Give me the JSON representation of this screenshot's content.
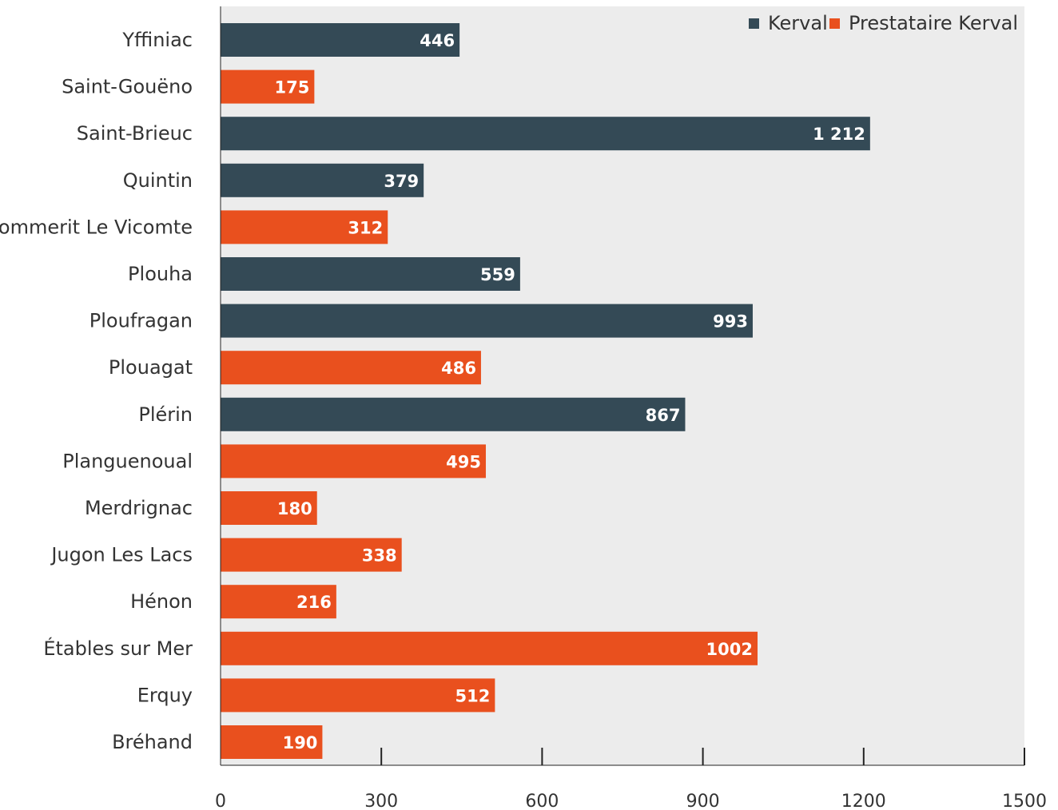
{
  "chart_data": {
    "type": "bar",
    "orientation": "horizontal",
    "categories": [
      "Yffiniac",
      "Saint-Gouëno",
      "Saint-Brieuc",
      "Quintin",
      "Pommerit Le Vicomte",
      "Plouha",
      "Ploufragan",
      "Plouagat",
      "Plérin",
      "Planguenoual",
      "Merdrignac",
      "Jugon Les Lacs",
      "Hénon",
      "Étables sur Mer",
      "Erquy",
      "Bréhand"
    ],
    "values": [
      446,
      175,
      1212,
      379,
      312,
      559,
      993,
      486,
      867,
      495,
      180,
      338,
      216,
      1002,
      512,
      190
    ],
    "value_labels": [
      "446",
      "175",
      "1 212",
      "379",
      "312",
      "559",
      "993",
      "486",
      "867",
      "495",
      "180",
      "338",
      "216",
      "1002",
      "512",
      "190"
    ],
    "series_of_bar": [
      0,
      1,
      0,
      0,
      1,
      0,
      0,
      1,
      0,
      1,
      1,
      1,
      1,
      1,
      1,
      1
    ],
    "series": [
      {
        "name": "Kerval",
        "color": "#344a56"
      },
      {
        "name": "Prestataire Kerval",
        "color": "#e9501e"
      }
    ],
    "xlim": [
      0,
      1500
    ],
    "xticks": [
      0,
      300,
      600,
      900,
      1200,
      1500
    ],
    "xtick_labels": [
      "0",
      "300",
      "600",
      "900",
      "1200",
      "1500"
    ],
    "grid": false,
    "legend_position": "top-right",
    "plot_background": "#ececec",
    "axis_color": "#222222"
  }
}
